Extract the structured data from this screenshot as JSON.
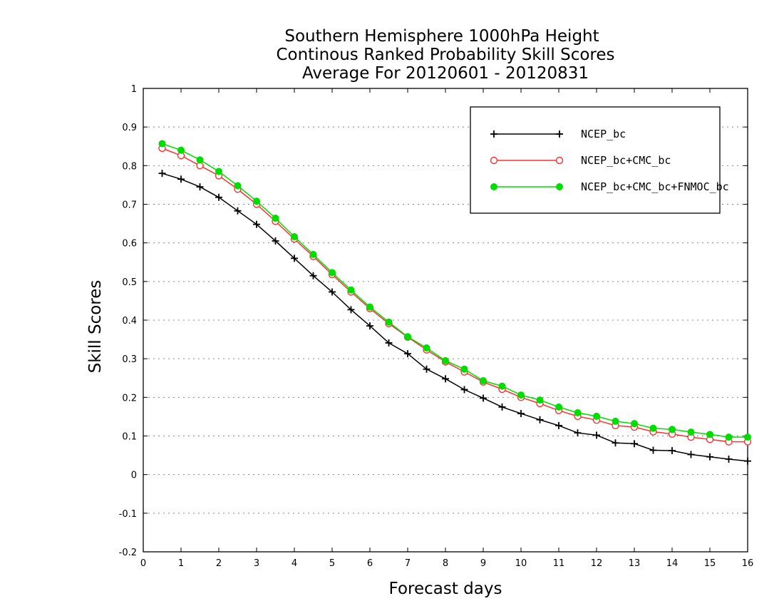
{
  "chart_data": {
    "type": "line",
    "title": [
      "Southern Hemisphere 1000hPa Height",
      "Continous Ranked Probability Skill Scores",
      "Average For 20120601 - 20120831"
    ],
    "xlabel": "Forecast days",
    "ylabel": "Skill Scores",
    "xlim": [
      0,
      16
    ],
    "ylim": [
      -0.2,
      1
    ],
    "x_ticks": [
      "0",
      "1",
      "2",
      "3",
      "4",
      "5",
      "6",
      "7",
      "8",
      "9",
      "10",
      "11",
      "12",
      "13",
      "14",
      "15",
      "16"
    ],
    "y_ticks": [
      "-0.2",
      "-0.1",
      "0",
      "0.1",
      "0.2",
      "0.3",
      "0.4",
      "0.5",
      "0.6",
      "0.7",
      "0.8",
      "0.9",
      "1"
    ],
    "grid": "horizontal dotted",
    "legend_position": "top-right",
    "x": [
      0.5,
      1,
      1.5,
      2,
      2.5,
      3,
      3.5,
      4,
      4.5,
      5,
      5.5,
      6,
      6.5,
      7,
      7.5,
      8,
      8.5,
      9,
      9.5,
      10,
      10.5,
      11,
      11.5,
      12,
      12.5,
      13,
      13.5,
      14,
      14.5,
      15,
      15.5,
      16
    ],
    "series": [
      {
        "name": "NCEP_bc",
        "color": "#000000",
        "marker": "plus",
        "values": [
          0.78,
          0.765,
          0.745,
          0.718,
          0.683,
          0.648,
          0.605,
          0.56,
          0.515,
          0.473,
          0.427,
          0.385,
          0.341,
          0.313,
          0.273,
          0.248,
          0.22,
          0.198,
          0.175,
          0.158,
          0.142,
          0.127,
          0.108,
          0.102,
          0.082,
          0.08,
          0.063,
          0.062,
          0.052,
          0.046,
          0.04,
          0.035
        ]
      },
      {
        "name": "NCEP_bc+CMC_bc",
        "color": "#ff3030",
        "marker": "open-circle",
        "values": [
          0.845,
          0.826,
          0.8,
          0.774,
          0.739,
          0.7,
          0.656,
          0.61,
          0.565,
          0.518,
          0.473,
          0.43,
          0.391,
          0.356,
          0.323,
          0.292,
          0.266,
          0.24,
          0.221,
          0.2,
          0.184,
          0.166,
          0.151,
          0.141,
          0.127,
          0.123,
          0.111,
          0.105,
          0.097,
          0.091,
          0.085,
          0.085
        ]
      },
      {
        "name": "NCEP_bc+CMC_bc+FNMOC_bc",
        "color": "#00dd00",
        "marker": "filled-circle",
        "values": [
          0.857,
          0.84,
          0.815,
          0.785,
          0.748,
          0.708,
          0.664,
          0.616,
          0.57,
          0.523,
          0.478,
          0.434,
          0.395,
          0.357,
          0.328,
          0.295,
          0.273,
          0.243,
          0.229,
          0.206,
          0.193,
          0.175,
          0.16,
          0.151,
          0.138,
          0.132,
          0.12,
          0.117,
          0.11,
          0.104,
          0.097,
          0.097
        ]
      }
    ]
  }
}
